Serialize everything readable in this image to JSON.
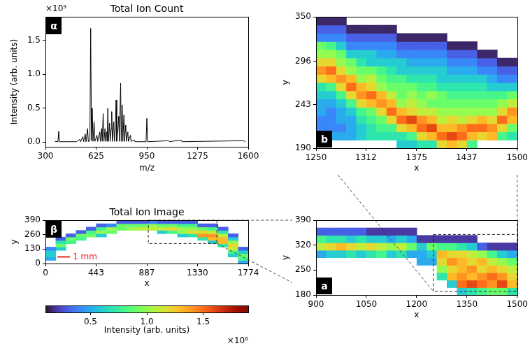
{
  "chart_data": [
    {
      "type": "line",
      "panel": "α",
      "title": "Total Ion Count",
      "x_label": "m/z",
      "y_label": "Intensity (arb. units)",
      "multiplier": "×10⁹",
      "color": "#000000",
      "xlim": [
        300,
        1600
      ],
      "ylim": [
        -0.07,
        1.85
      ],
      "xticks": [
        300,
        625,
        950,
        1275,
        1600
      ],
      "yticks": [
        {
          "value": 0,
          "label": "0.0"
        },
        0.5,
        {
          "value": 1,
          "label": "1.0"
        },
        1.5
      ],
      "x": [
        360,
        380,
        385,
        390,
        500,
        520,
        525,
        540,
        545,
        555,
        560,
        570,
        575,
        585,
        590,
        595,
        600,
        605,
        612,
        617,
        630,
        635,
        648,
        652,
        660,
        664,
        670,
        675,
        682,
        686,
        693,
        696,
        700,
        704,
        711,
        715,
        722,
        725,
        729,
        738,
        742,
        748,
        753,
        757,
        765,
        770,
        774,
        782,
        786,
        792,
        796,
        803,
        807,
        815,
        819,
        828,
        832,
        845,
        849,
        870,
        874,
        945,
        950,
        955,
        1090,
        1095,
        1170,
        1175,
        1570,
        1580
      ],
      "values": [
        0.01,
        0.005,
        0.16,
        0.005,
        0.005,
        0.04,
        0.005,
        0.08,
        0.005,
        0.12,
        0.005,
        0.2,
        0.005,
        0.02,
        1.68,
        0.02,
        0.5,
        0.01,
        0.3,
        0.01,
        0.1,
        0.01,
        0.15,
        0.01,
        0.2,
        0.01,
        0.42,
        0.01,
        0.2,
        0.01,
        0.15,
        0.01,
        0.5,
        0.01,
        0.28,
        0.01,
        0.2,
        0.45,
        0.01,
        0.3,
        0.01,
        0.2,
        0.62,
        0.01,
        0.2,
        0.38,
        0.01,
        0.87,
        0.01,
        0.55,
        0.01,
        0.4,
        0.01,
        0.25,
        0.01,
        0.15,
        0.01,
        0.1,
        0.01,
        0.03,
        0.005,
        0.005,
        0.35,
        0.005,
        0.02,
        0.005,
        0.03,
        0.005,
        0.02,
        0.005
      ]
    },
    {
      "type": "heatmap",
      "panel": "β",
      "title": "Total Ion Image",
      "x_label": "x",
      "y_label": "y",
      "xlim": [
        0,
        1774
      ],
      "ylim": [
        0,
        390
      ],
      "xticks": [
        0,
        443,
        887,
        1330,
        1774
      ],
      "yticks": [
        0,
        130,
        260,
        390
      ],
      "x_edges": [
        0,
        89,
        177,
        266,
        355,
        443,
        532,
        621,
        710,
        798,
        887,
        976,
        1064,
        1153,
        1242,
        1330,
        1419,
        1508,
        1597,
        1685,
        1774
      ],
      "y_edges": [
        0,
        30,
        60,
        90,
        120,
        150,
        180,
        210,
        240,
        270,
        300,
        330,
        360,
        390
      ],
      "rows": [
        [
          null,
          null,
          null,
          null,
          null,
          null,
          null,
          null,
          null,
          null,
          null,
          null,
          null,
          null,
          null,
          null,
          null,
          null,
          null,
          0.5
        ],
        [
          0.5,
          null,
          null,
          null,
          null,
          null,
          null,
          null,
          null,
          null,
          null,
          null,
          null,
          null,
          null,
          null,
          null,
          null,
          null,
          0.8
        ],
        [
          0.6,
          null,
          null,
          null,
          null,
          null,
          null,
          null,
          null,
          null,
          null,
          null,
          null,
          null,
          null,
          null,
          null,
          null,
          0.6,
          0.9
        ],
        [
          0.6,
          null,
          null,
          null,
          null,
          null,
          null,
          null,
          null,
          null,
          null,
          null,
          null,
          null,
          null,
          null,
          null,
          null,
          0.8,
          0.6
        ],
        [
          0.4,
          0.6,
          null,
          null,
          null,
          null,
          null,
          null,
          null,
          null,
          null,
          null,
          null,
          null,
          null,
          null,
          null,
          null,
          1.1,
          0.3
        ],
        [
          null,
          0.9,
          null,
          null,
          null,
          null,
          null,
          null,
          null,
          null,
          null,
          null,
          null,
          null,
          null,
          null,
          null,
          0.7,
          1.2,
          null
        ],
        [
          null,
          0.7,
          0.8,
          null,
          null,
          null,
          null,
          null,
          null,
          null,
          null,
          null,
          null,
          null,
          null,
          null,
          0.6,
          1.3,
          1.0,
          null
        ],
        [
          null,
          0.3,
          0.9,
          0.8,
          null,
          null,
          null,
          null,
          null,
          null,
          null,
          null,
          null,
          null,
          null,
          0.7,
          1.3,
          1.3,
          0.6,
          null
        ],
        [
          null,
          null,
          0.3,
          0.9,
          0.9,
          0.6,
          null,
          null,
          null,
          null,
          null,
          null,
          null,
          0.6,
          0.7,
          1.4,
          1.4,
          1.1,
          0.3,
          null
        ],
        [
          null,
          null,
          null,
          0.3,
          0.8,
          1.0,
          0.9,
          null,
          null,
          null,
          null,
          0.6,
          0.8,
          1.0,
          1.2,
          1.2,
          1.1,
          0.7,
          null,
          null
        ],
        [
          null,
          null,
          null,
          null,
          0.3,
          0.8,
          1.0,
          0.9,
          1.0,
          1.1,
          1.1,
          1.1,
          1.2,
          1.0,
          1.0,
          0.9,
          0.8,
          0.3,
          null,
          null
        ],
        [
          null,
          null,
          null,
          null,
          null,
          0.3,
          0.4,
          0.9,
          0.9,
          0.9,
          1.0,
          0.9,
          0.9,
          0.8,
          0.8,
          0.3,
          0.3,
          null,
          null,
          null
        ],
        [
          null,
          null,
          null,
          null,
          null,
          null,
          null,
          0.3,
          0.3,
          0.3,
          0.4,
          0.3,
          0.3,
          0.3,
          0.3,
          null,
          null,
          null,
          null,
          null
        ]
      ],
      "zoom_box": {
        "x": [
          900,
          1500
        ],
        "y": [
          180,
          390
        ]
      },
      "scale_bar": {
        "label": "1 mm",
        "x": [
          105,
          215
        ],
        "y": 60,
        "color": "#e32b22"
      }
    },
    {
      "type": "heatmap",
      "panel": "a",
      "x_label": "x",
      "y_label": "y",
      "xlim": [
        900,
        1500
      ],
      "ylim": [
        180,
        390
      ],
      "xticks": [
        900,
        1050,
        1200,
        1350,
        1500
      ],
      "yticks": [
        180,
        250,
        320,
        390
      ],
      "x_edges": [
        900,
        930,
        960,
        990,
        1020,
        1050,
        1080,
        1110,
        1140,
        1170,
        1200,
        1230,
        1260,
        1290,
        1320,
        1350,
        1380,
        1410,
        1440,
        1470,
        1500
      ],
      "y_edges": [
        180,
        201,
        222,
        243,
        264,
        285,
        306,
        327,
        348,
        369
      ],
      "rows": [
        [
          null,
          null,
          null,
          null,
          null,
          null,
          null,
          null,
          null,
          null,
          null,
          null,
          null,
          null,
          0.6,
          0.7,
          0.8,
          0.9,
          0.9,
          0.7
        ],
        [
          null,
          null,
          null,
          null,
          null,
          null,
          null,
          null,
          null,
          null,
          null,
          null,
          null,
          0.6,
          1.5,
          1.6,
          1.5,
          1.4,
          1.6,
          1.3
        ],
        [
          null,
          null,
          null,
          null,
          null,
          null,
          null,
          null,
          null,
          null,
          null,
          null,
          0.7,
          1.3,
          1.4,
          1.3,
          1.4,
          1.5,
          1.4,
          1.2
        ],
        [
          null,
          null,
          null,
          null,
          null,
          null,
          null,
          null,
          null,
          null,
          null,
          null,
          1.0,
          1.2,
          1.3,
          1.4,
          1.2,
          1.3,
          1.2,
          1.1
        ],
        [
          null,
          null,
          null,
          null,
          null,
          null,
          null,
          null,
          null,
          null,
          0.5,
          0.5,
          1.2,
          1.4,
          1.3,
          1.2,
          1.3,
          1.1,
          1.0,
          0.9
        ],
        [
          0.5,
          0.6,
          0.6,
          0.7,
          0.6,
          0.7,
          0.8,
          0.6,
          0.7,
          0.5,
          0.5,
          0.6,
          1.3,
          1.2,
          1.2,
          1.1,
          1.0,
          0.8,
          0.6,
          0.5
        ],
        [
          1.1,
          1.2,
          1.3,
          1.2,
          1.1,
          1.2,
          1.1,
          1.0,
          1.1,
          0.9,
          0.6,
          0.9,
          0.8,
          0.8,
          0.7,
          0.6,
          0.3,
          0.2,
          0.2,
          0.2
        ],
        [
          0.8,
          0.7,
          0.7,
          0.6,
          0.7,
          0.6,
          0.6,
          0.5,
          0.6,
          0.5,
          0.2,
          0.2,
          0.2,
          0.2,
          0.2,
          0.2,
          null,
          null,
          null,
          null
        ],
        [
          0.3,
          0.3,
          0.3,
          0.3,
          0.3,
          0.2,
          0.2,
          0.2,
          0.2,
          0.2,
          null,
          null,
          null,
          null,
          null,
          null,
          null,
          null,
          null,
          null
        ]
      ],
      "zoom_box": {
        "x": [
          1250,
          1500
        ],
        "y": [
          190,
          350
        ]
      }
    },
    {
      "type": "heatmap",
      "panel": "b",
      "x_label": "x",
      "y_label": "y",
      "xlim": [
        1250,
        1500
      ],
      "ylim": [
        190,
        350
      ],
      "xticks": [
        1250,
        1312,
        1375,
        1437,
        1500
      ],
      "yticks": [
        190,
        243,
        296,
        350
      ],
      "x_edges": [
        1250,
        1262.5,
        1275,
        1287.5,
        1300,
        1312.5,
        1325,
        1337.5,
        1350,
        1362.5,
        1375,
        1387.5,
        1400,
        1412.5,
        1425,
        1437.5,
        1450,
        1462.5,
        1475,
        1487.5,
        1500
      ],
      "y_edges": [
        190,
        200,
        210,
        220,
        230,
        240,
        250,
        260,
        270,
        280,
        290,
        300,
        310,
        320,
        330,
        340,
        350
      ],
      "columns": [
        [
          null,
          0.5,
          0.4,
          0.4,
          0.5,
          0.5,
          0.6,
          0.7,
          1.2,
          1.4,
          1.2,
          1.0,
          0.9,
          0.4,
          0.3,
          0.15
        ],
        [
          null,
          0.5,
          0.4,
          0.4,
          0.4,
          0.5,
          0.6,
          0.8,
          1.3,
          1.5,
          1.2,
          1.0,
          0.8,
          0.4,
          0.3,
          0.15
        ],
        [
          null,
          0.5,
          0.4,
          0.5,
          0.5,
          0.6,
          0.8,
          1.2,
          1.4,
          1.2,
          1.0,
          0.9,
          0.6,
          0.4,
          0.3,
          0.15
        ],
        [
          null,
          0.5,
          0.5,
          0.5,
          0.6,
          0.8,
          1.2,
          1.5,
          1.3,
          1.0,
          0.9,
          0.6,
          0.4,
          0.3,
          0.15,
          null
        ],
        [
          null,
          0.6,
          0.6,
          0.7,
          0.8,
          1.2,
          1.4,
          1.3,
          1.0,
          0.9,
          0.7,
          0.6,
          0.4,
          0.3,
          0.15,
          null
        ],
        [
          null,
          0.7,
          0.7,
          0.8,
          0.9,
          1.3,
          1.5,
          1.2,
          1.1,
          0.9,
          0.6,
          0.6,
          0.4,
          0.3,
          0.15,
          null
        ],
        [
          null,
          0.7,
          0.8,
          0.9,
          1.2,
          1.4,
          1.3,
          1.0,
          0.9,
          0.8,
          0.6,
          0.5,
          0.4,
          0.3,
          0.15,
          null
        ],
        [
          null,
          0.7,
          0.8,
          1.2,
          1.5,
          1.3,
          1.1,
          0.9,
          0.8,
          0.7,
          0.6,
          0.5,
          0.4,
          0.3,
          0.15,
          null
        ],
        [
          0.6,
          0.7,
          1.2,
          1.5,
          1.3,
          1.0,
          0.9,
          0.9,
          0.8,
          0.6,
          0.6,
          0.4,
          0.3,
          0.15,
          null,
          null
        ],
        [
          0.6,
          0.8,
          1.3,
          1.6,
          1.2,
          1.1,
          1.0,
          0.9,
          0.7,
          0.6,
          0.5,
          0.4,
          0.3,
          0.15,
          null,
          null
        ],
        [
          0.7,
          1.2,
          1.5,
          1.4,
          1.1,
          1.0,
          0.9,
          0.8,
          0.7,
          0.6,
          0.5,
          0.4,
          0.3,
          0.15,
          null,
          null
        ],
        [
          0.7,
          1.3,
          1.6,
          1.3,
          1.1,
          0.9,
          1.0,
          0.8,
          0.7,
          0.6,
          0.5,
          0.4,
          0.3,
          0.15,
          null,
          null
        ],
        [
          1.2,
          1.5,
          1.3,
          1.1,
          1.0,
          0.9,
          0.9,
          0.7,
          0.6,
          0.6,
          0.5,
          0.4,
          0.3,
          0.15,
          null,
          null
        ],
        [
          1.3,
          1.6,
          1.3,
          1.2,
          1.0,
          0.9,
          0.8,
          0.7,
          0.6,
          0.5,
          0.4,
          0.3,
          0.15,
          null,
          null,
          null
        ],
        [
          1.2,
          1.5,
          1.4,
          1.1,
          1.0,
          0.9,
          0.8,
          0.7,
          0.6,
          0.5,
          0.4,
          0.3,
          0.15,
          null,
          null,
          null
        ],
        [
          0.8,
          1.3,
          1.5,
          1.2,
          1.0,
          0.9,
          0.8,
          0.7,
          0.6,
          0.5,
          0.4,
          0.3,
          0.15,
          null,
          null,
          null
        ],
        [
          null,
          1.2,
          1.5,
          1.3,
          1.0,
          0.9,
          0.8,
          0.7,
          0.6,
          0.4,
          0.3,
          0.15,
          null,
          null,
          null,
          null
        ],
        [
          null,
          1.3,
          1.4,
          1.2,
          1.0,
          0.9,
          0.8,
          0.6,
          0.5,
          0.4,
          0.3,
          0.15,
          null,
          null,
          null,
          null
        ],
        [
          null,
          0.8,
          1.2,
          1.5,
          1.2,
          1.0,
          0.8,
          0.6,
          0.4,
          0.3,
          0.15,
          null,
          null,
          null,
          null,
          null
        ],
        [
          null,
          0.7,
          0.9,
          1.3,
          1.4,
          1.1,
          0.9,
          0.6,
          0.4,
          0.3,
          0.15,
          null,
          null,
          null,
          null,
          null
        ]
      ]
    },
    {
      "type": "colorbar",
      "label": "Intensity (arb. units)",
      "multiplier": "×10⁶",
      "range": [
        0.1,
        1.9
      ],
      "ticks": [
        0.5,
        {
          "value": 1,
          "label": "1.0"
        },
        1.5
      ]
    }
  ]
}
